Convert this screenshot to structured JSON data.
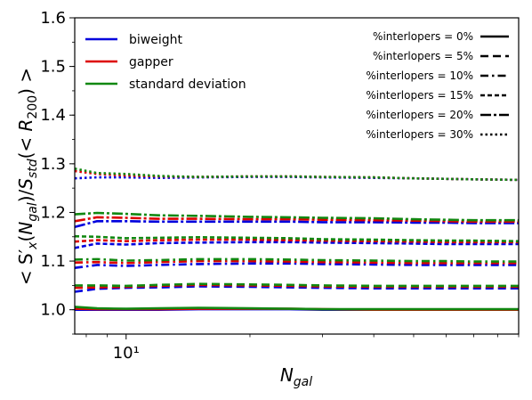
{
  "chart_data": {
    "type": "line",
    "xlabel": "N_gal",
    "ylabel": "< S'_x(N_gal)/S_std(< R_200) >",
    "x_scale": "log",
    "xlim": [
      7.5,
      90
    ],
    "ylim": [
      0.95,
      1.6
    ],
    "y_ticks": [
      "1.0",
      "1.1",
      "1.2",
      "1.3",
      "1.4",
      "1.5",
      "1.6"
    ],
    "x_tick_label": "10¹",
    "grid": false,
    "estimators": [
      {
        "name": "biweight",
        "color": "#0000dd"
      },
      {
        "name": "gapper",
        "color": "#dd0000"
      },
      {
        "name": "standard deviation",
        "color": "#118811"
      }
    ],
    "interloper_levels": [
      {
        "label": "%interlopers = 0%",
        "dash": "solid"
      },
      {
        "label": "%interlopers = 5%",
        "dash": "dashed"
      },
      {
        "label": "%interlopers = 10%",
        "dash": "dashdot"
      },
      {
        "label": "%interlopers = 15%",
        "dash": "densedash"
      },
      {
        "label": "%interlopers = 20%",
        "dash": "longdashdot"
      },
      {
        "label": "%interlopers = 30%",
        "dash": "dotted"
      }
    ],
    "x": [
      7.5,
      8.5,
      10,
      12,
      15,
      20,
      25,
      30,
      40,
      50,
      60,
      70,
      90
    ],
    "series": [
      {
        "level": "0%",
        "estimator": "biweight",
        "values": [
          1.0,
          1.0,
          1.0,
          1.0,
          1.001,
          1.001,
          1.001,
          1.0,
          1.0,
          1.0,
          1.0,
          1.0,
          1.0
        ]
      },
      {
        "level": "0%",
        "estimator": "gapper",
        "values": [
          1.002,
          1.001,
          1.001,
          1.001,
          1.002,
          1.002,
          1.002,
          1.001,
          1.0,
          1.0,
          1.0,
          1.0,
          1.0
        ]
      },
      {
        "level": "0%",
        "estimator": "standard deviation",
        "values": [
          1.006,
          1.003,
          1.002,
          1.003,
          1.004,
          1.003,
          1.002,
          1.001,
          1.001,
          1.001,
          1.001,
          1.001,
          1.001
        ]
      },
      {
        "level": "5%",
        "estimator": "biweight",
        "values": [
          1.037,
          1.043,
          1.045,
          1.046,
          1.048,
          1.047,
          1.046,
          1.045,
          1.044,
          1.044,
          1.044,
          1.044,
          1.044
        ]
      },
      {
        "level": "5%",
        "estimator": "gapper",
        "values": [
          1.045,
          1.046,
          1.047,
          1.049,
          1.051,
          1.05,
          1.049,
          1.048,
          1.047,
          1.047,
          1.047,
          1.047,
          1.047
        ]
      },
      {
        "level": "5%",
        "estimator": "standard deviation",
        "values": [
          1.05,
          1.05,
          1.049,
          1.051,
          1.053,
          1.052,
          1.051,
          1.05,
          1.049,
          1.049,
          1.049,
          1.049,
          1.049
        ]
      },
      {
        "level": "10%",
        "estimator": "biweight",
        "values": [
          1.086,
          1.092,
          1.09,
          1.092,
          1.094,
          1.095,
          1.095,
          1.094,
          1.093,
          1.092,
          1.092,
          1.092,
          1.092
        ]
      },
      {
        "level": "10%",
        "estimator": "gapper",
        "values": [
          1.097,
          1.098,
          1.096,
          1.098,
          1.1,
          1.1,
          1.099,
          1.098,
          1.097,
          1.096,
          1.096,
          1.096,
          1.096
        ]
      },
      {
        "level": "10%",
        "estimator": "standard deviation",
        "values": [
          1.103,
          1.104,
          1.101,
          1.102,
          1.104,
          1.104,
          1.103,
          1.102,
          1.101,
          1.1,
          1.1,
          1.099,
          1.099
        ]
      },
      {
        "level": "15%",
        "estimator": "biweight",
        "values": [
          1.127,
          1.136,
          1.134,
          1.137,
          1.138,
          1.139,
          1.139,
          1.138,
          1.137,
          1.136,
          1.135,
          1.135,
          1.135
        ]
      },
      {
        "level": "15%",
        "estimator": "gapper",
        "values": [
          1.14,
          1.143,
          1.141,
          1.143,
          1.144,
          1.144,
          1.143,
          1.142,
          1.141,
          1.14,
          1.139,
          1.139,
          1.139
        ]
      },
      {
        "level": "15%",
        "estimator": "standard deviation",
        "values": [
          1.151,
          1.15,
          1.147,
          1.148,
          1.149,
          1.148,
          1.147,
          1.145,
          1.144,
          1.143,
          1.142,
          1.142,
          1.141
        ]
      },
      {
        "level": "20%",
        "estimator": "biweight",
        "values": [
          1.17,
          1.182,
          1.182,
          1.181,
          1.181,
          1.181,
          1.181,
          1.18,
          1.18,
          1.179,
          1.179,
          1.178,
          1.178
        ]
      },
      {
        "level": "20%",
        "estimator": "gapper",
        "values": [
          1.182,
          1.19,
          1.189,
          1.187,
          1.187,
          1.186,
          1.186,
          1.185,
          1.184,
          1.183,
          1.182,
          1.181,
          1.181
        ]
      },
      {
        "level": "20%",
        "estimator": "standard deviation",
        "values": [
          1.196,
          1.199,
          1.197,
          1.194,
          1.193,
          1.191,
          1.19,
          1.189,
          1.188,
          1.186,
          1.185,
          1.184,
          1.184
        ]
      },
      {
        "level": "30%",
        "estimator": "biweight",
        "values": [
          1.27,
          1.272,
          1.272,
          1.271,
          1.272,
          1.273,
          1.273,
          1.272,
          1.271,
          1.27,
          1.269,
          1.268,
          1.267
        ]
      },
      {
        "level": "30%",
        "estimator": "gapper",
        "values": [
          1.285,
          1.279,
          1.276,
          1.274,
          1.273,
          1.274,
          1.274,
          1.273,
          1.272,
          1.27,
          1.269,
          1.268,
          1.267
        ]
      },
      {
        "level": "30%",
        "estimator": "standard deviation",
        "values": [
          1.29,
          1.281,
          1.279,
          1.275,
          1.273,
          1.274,
          1.274,
          1.273,
          1.272,
          1.27,
          1.269,
          1.268,
          1.267
        ]
      }
    ]
  }
}
